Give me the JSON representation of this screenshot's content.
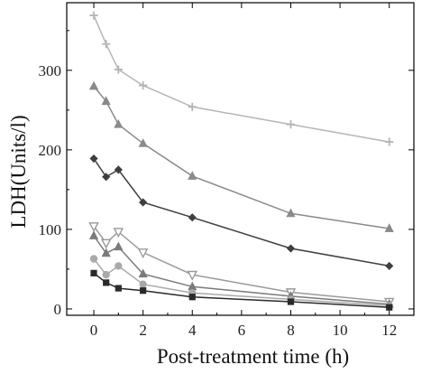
{
  "chart_data": {
    "type": "line",
    "title": "",
    "xlabel": "Post-treatment time (h)",
    "ylabel": "LDH(Units/l)",
    "xlim": [
      -1.1,
      13
    ],
    "ylim": [
      -8,
      385
    ],
    "x": [
      0,
      0.5,
      1,
      2,
      4,
      8,
      12
    ],
    "xticks": [
      0,
      2,
      4,
      6,
      8,
      10,
      12
    ],
    "yticks": [
      0,
      100,
      200,
      300
    ],
    "grid": false,
    "legend": "none",
    "series": [
      {
        "marker": "plus",
        "color": "#b5b5b5",
        "values": [
          369,
          333,
          301,
          281,
          254,
          232,
          210
        ]
      },
      {
        "marker": "triangle-up",
        "color": "#8a8a8a",
        "values": [
          280,
          261,
          232,
          208,
          167,
          120,
          101
        ]
      },
      {
        "marker": "diamond",
        "color": "#3f3f3f",
        "values": [
          189,
          166,
          175,
          134,
          115,
          76,
          54
        ]
      },
      {
        "marker": "triangle-down",
        "color": "#9a9a9a",
        "values": [
          104,
          83,
          97,
          71,
          43,
          21,
          9
        ]
      },
      {
        "marker": "triangle-up",
        "color": "#7a7a7a",
        "values": [
          92,
          70,
          78,
          44,
          28,
          16,
          6
        ]
      },
      {
        "marker": "circle",
        "color": "#a9a9a9",
        "values": [
          63,
          43,
          54,
          31,
          20,
          12,
          4
        ]
      },
      {
        "marker": "square",
        "color": "#2a2a2a",
        "values": [
          45,
          33,
          26,
          23,
          15,
          9,
          2
        ]
      }
    ]
  }
}
